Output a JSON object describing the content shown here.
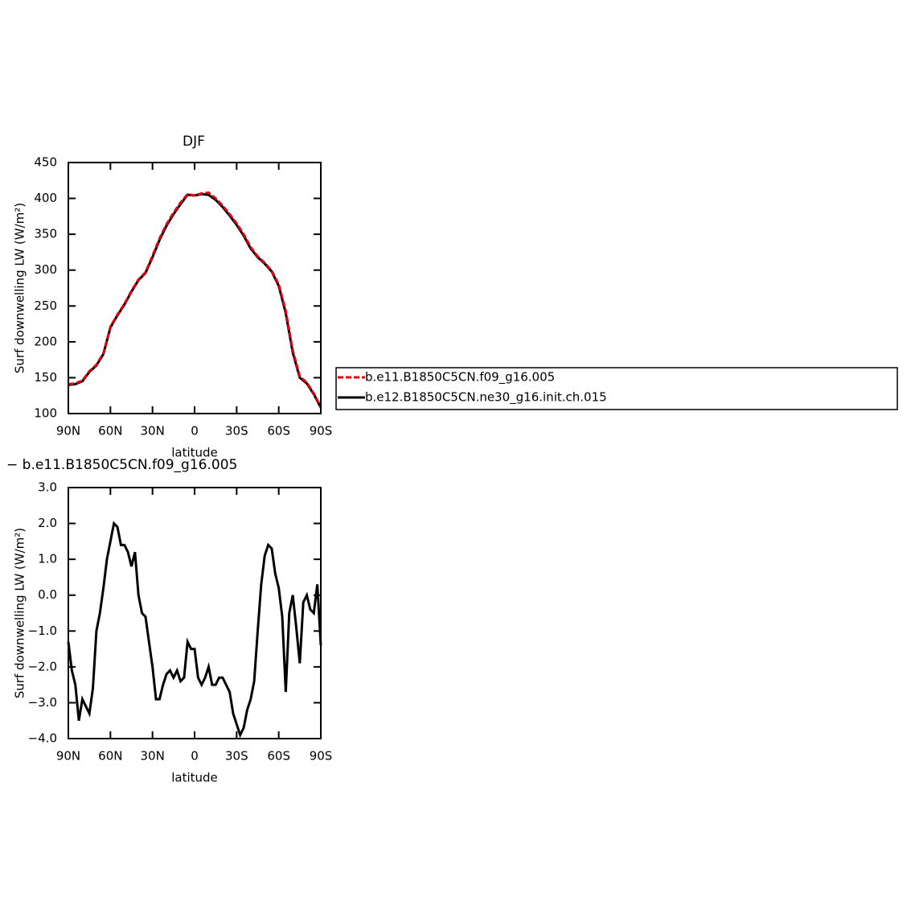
{
  "chart_data": [
    {
      "type": "line",
      "title": "DJF",
      "xlabel": "latitude",
      "ylabel": "Surf downwelling LW (W/m²)",
      "x": [
        90,
        85,
        80,
        75,
        70,
        65,
        60,
        55,
        50,
        45,
        40,
        35,
        30,
        25,
        20,
        15,
        10,
        5,
        0,
        -5,
        -10,
        -15,
        -20,
        -25,
        -30,
        -35,
        -40,
        -45,
        -50,
        -55,
        -60,
        -65,
        -70,
        -75,
        -80,
        -85,
        -90
      ],
      "series": [
        {
          "name": "b.e11.B1850C5CN.f09_g16.005",
          "color": "#e0000f",
          "dashed": true,
          "values": [
            141,
            142,
            146,
            159,
            168,
            184,
            221,
            238,
            253,
            271,
            287,
            297,
            320,
            344,
            364,
            380,
            394,
            406,
            404,
            407,
            408,
            400,
            390,
            378,
            365,
            350,
            332,
            319,
            310,
            299,
            280,
            243,
            188,
            152,
            143,
            128,
            109
          ]
        },
        {
          "name": "b.e12.B1850C5CN.ne30_g16.init.ch.015",
          "color": "#000000",
          "dashed": false,
          "values": [
            140,
            141,
            145,
            158,
            167,
            183,
            220,
            237,
            252,
            270,
            286,
            296,
            318,
            342,
            362,
            378,
            392,
            405,
            404,
            406,
            405,
            398,
            388,
            376,
            363,
            348,
            330,
            318,
            309,
            298,
            278,
            240,
            185,
            150,
            142,
            127,
            108
          ]
        }
      ],
      "xlim": [
        90,
        -90
      ],
      "xticks": [
        {
          "value": 90,
          "label": "90N"
        },
        {
          "value": 60,
          "label": "60N"
        },
        {
          "value": 30,
          "label": "30N"
        },
        0,
        {
          "value": -30,
          "label": "30S"
        },
        {
          "value": -60,
          "label": "60S"
        },
        {
          "value": -90,
          "label": "90S"
        }
      ],
      "ylim": [
        100,
        450
      ],
      "yticks": [
        100,
        150,
        200,
        250,
        300,
        350,
        400,
        450
      ],
      "legend": "right"
    },
    {
      "type": "line",
      "title": "− b.e11.B1850C5CN.f09_g16.005",
      "xlabel": "latitude",
      "ylabel": "Surf downwelling LW (W/m²)",
      "x": [
        90,
        87.5,
        85,
        82.5,
        80,
        77.5,
        75,
        72.5,
        70,
        67.5,
        65,
        62.5,
        60,
        57.5,
        55,
        52.5,
        50,
        47.5,
        45,
        42.5,
        40,
        37.5,
        35,
        32.5,
        30,
        27.5,
        25,
        22.5,
        20,
        17.5,
        15,
        12.5,
        10,
        7.5,
        5,
        2.5,
        0,
        -2.5,
        -5,
        -7.5,
        -10,
        -12.5,
        -15,
        -17.5,
        -20,
        -22.5,
        -25,
        -27.5,
        -30,
        -32.5,
        -35,
        -37.5,
        -40,
        -42.5,
        -45,
        -47.5,
        -50,
        -52.5,
        -55,
        -57.5,
        -60,
        -62.5,
        -65,
        -67.5,
        -70,
        -72.5,
        -75,
        -77.5,
        -80,
        -82.5,
        -85,
        -87.5,
        -90
      ],
      "color": "#000000",
      "values": [
        -1.3,
        -2.1,
        -2.5,
        -3.5,
        -2.9,
        -3.1,
        -3.3,
        -2.6,
        -1.0,
        -0.5,
        0.2,
        1.0,
        1.5,
        2.0,
        1.9,
        1.4,
        1.4,
        1.2,
        0.8,
        1.2,
        0.0,
        -0.5,
        -0.6,
        -1.3,
        -2.0,
        -2.9,
        -2.9,
        -2.5,
        -2.2,
        -2.1,
        -2.3,
        -2.1,
        -2.4,
        -2.3,
        -1.3,
        -1.5,
        -1.5,
        -2.3,
        -2.5,
        -2.3,
        -2.0,
        -2.5,
        -2.5,
        -2.3,
        -2.3,
        -2.5,
        -2.7,
        -3.3,
        -3.6,
        -3.9,
        -3.7,
        -3.2,
        -2.9,
        -2.4,
        -1.0,
        0.3,
        1.1,
        1.4,
        1.3,
        0.6,
        0.2,
        -0.6,
        -2.7,
        -0.5,
        0.0,
        -0.9,
        -1.9,
        -0.2,
        0.0,
        -0.4,
        -0.5,
        0.3,
        -1.4
      ],
      "xlim": [
        90,
        -90
      ],
      "xticks": [
        {
          "value": 90,
          "label": "90N"
        },
        {
          "value": 60,
          "label": "60N"
        },
        {
          "value": 30,
          "label": "30N"
        },
        0,
        {
          "value": -30,
          "label": "30S"
        },
        {
          "value": -60,
          "label": "60S"
        },
        {
          "value": -90,
          "label": "90S"
        }
      ],
      "ylim": [
        -4,
        3
      ],
      "yticks": [
        {
          "value": 3,
          "label": "3.0"
        },
        {
          "value": 2,
          "label": "2.0"
        },
        {
          "value": 1,
          "label": "1.0"
        },
        {
          "value": 0,
          "label": "0.0"
        },
        {
          "value": -1,
          "label": "−1.0"
        },
        {
          "value": -2,
          "label": "−2.0"
        },
        {
          "value": -3,
          "label": "−3.0"
        },
        {
          "value": -4,
          "label": "−4.0"
        }
      ]
    }
  ]
}
